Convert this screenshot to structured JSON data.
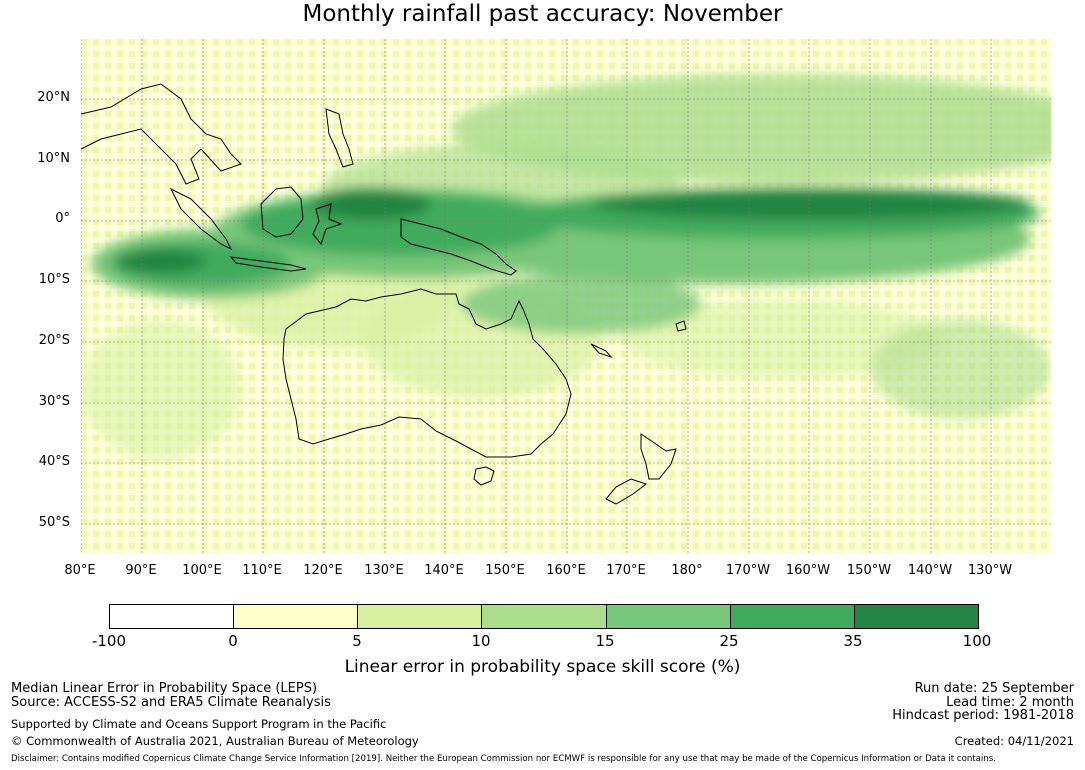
{
  "title": "Monthly rainfall past accuracy: November",
  "map": {
    "lat_labels": [
      "20°N",
      "10°N",
      "0°",
      "10°S",
      "20°S",
      "30°S",
      "40°S",
      "50°S"
    ],
    "lon_labels": [
      "80°E",
      "90°E",
      "100°E",
      "110°E",
      "120°E",
      "130°E",
      "140°E",
      "150°E",
      "160°E",
      "170°E",
      "180°",
      "170°W",
      "160°W",
      "150°W",
      "140°W",
      "130°W"
    ]
  },
  "colorbar": {
    "ticks": [
      "-100",
      "0",
      "5",
      "10",
      "15",
      "25",
      "35",
      "100"
    ],
    "colors": [
      "#ffffff",
      "#ffffcc",
      "#d9f0a3",
      "#addd8e",
      "#78c679",
      "#41ab5d",
      "#238443"
    ],
    "label": "Linear error in probability space skill score (%)"
  },
  "footer": {
    "line1": "Median Linear Error in Probability Space (LEPS)",
    "line2": "Source: ACCESS-S2 and ERA5 Climate Reanalysis",
    "line3": "Supported by Climate and Oceans Support Program in the Pacific",
    "line4": "© Commonwealth of Australia 2021, Australian Bureau of Meteorology",
    "run_date": "Run date: 25 September",
    "lead_time": "Lead time: 2 month",
    "hindcast": "Hindcast period: 1981-2018",
    "created": "Created: 04/11/2021",
    "disclaimer": "Disclaimer: Contains modified Copernicus Climate Change Service Information [2019]. Neither the European Commission nor ECMWF is responsible for any use that may be made of the Copernicus Information or Data it contains."
  }
}
